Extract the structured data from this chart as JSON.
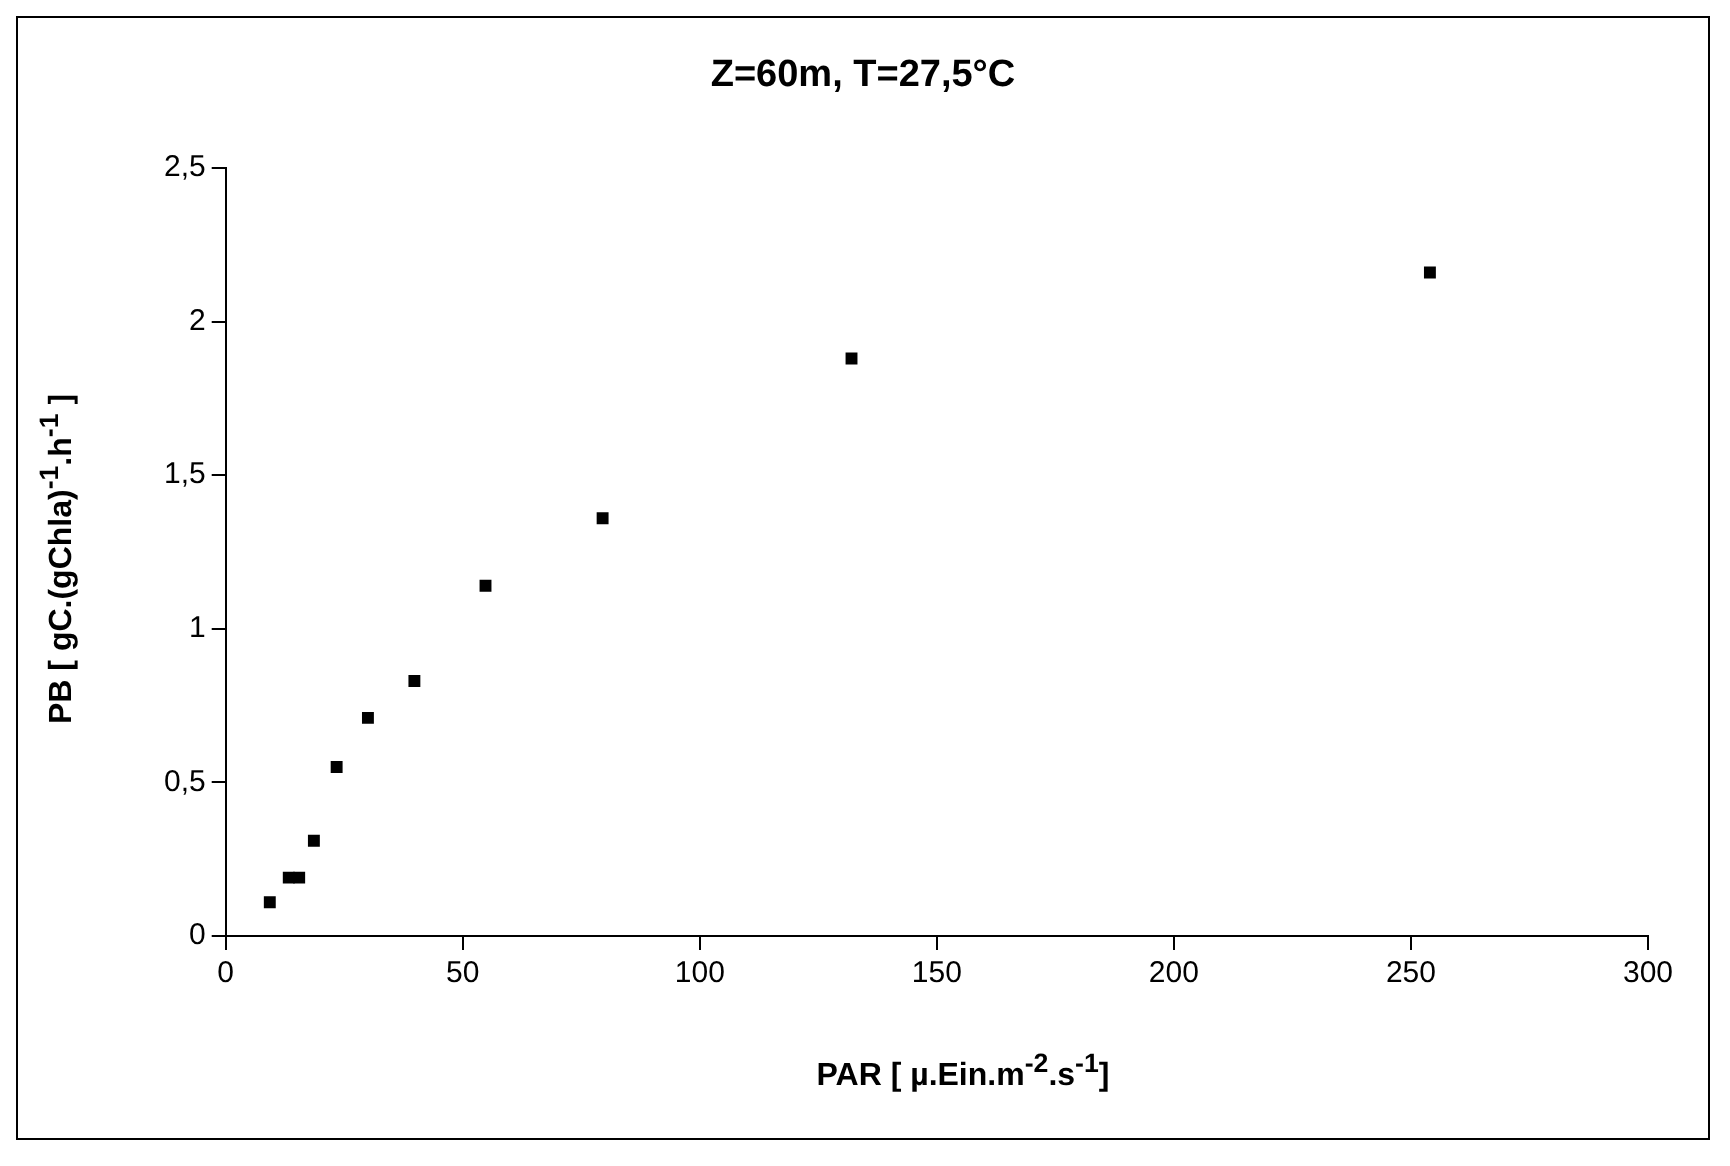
{
  "chart_data": {
    "type": "scatter",
    "title": "Z=60m, T=27,5°C",
    "xlabel": "PAR [ µ.Ein.m$^{-2}$.s$^{-1}$]",
    "ylabel": "PB [ gC.(gChla)$^{-1}$.h$^{-1}$ ]",
    "x": [
      9.3,
      13.3,
      15.5,
      18.6,
      23.4,
      30,
      39.8,
      54.8,
      79.5,
      132,
      254
    ],
    "series": [
      {
        "color": "#000000",
        "values": [
          0.11,
          0.19,
          0.19,
          0.31,
          0.55,
          0.71,
          0.83,
          1.14,
          1.36,
          1.88,
          2.16
        ]
      }
    ],
    "xlim": [
      0,
      300
    ],
    "xticks": [
      0,
      50,
      100,
      150,
      200,
      250,
      300
    ],
    "ylim": [
      0,
      2.5
    ],
    "yticks": [
      {
        "value": 0,
        "label": "0"
      },
      {
        "value": 0.5,
        "label": "0,5"
      },
      {
        "value": 1,
        "label": "1"
      },
      {
        "value": 1.5,
        "label": "1,5"
      },
      {
        "value": 2,
        "label": "2"
      },
      {
        "value": 2.5,
        "label": "2,5"
      }
    ],
    "marker": "square",
    "grid": false,
    "legend": false
  }
}
